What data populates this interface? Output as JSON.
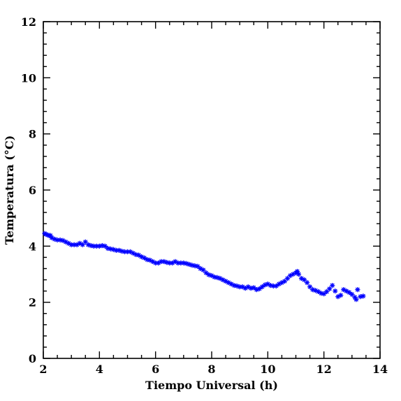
{
  "chart_data": {
    "type": "scatter",
    "xlabel": "Tiempo Universal (h)",
    "ylabel": "Temperatura (°C)",
    "xlim": [
      2,
      14
    ],
    "ylim": [
      0,
      12
    ],
    "x_ticks": [
      2,
      4,
      6,
      8,
      10,
      12,
      14
    ],
    "y_ticks": [
      0,
      2,
      4,
      6,
      8,
      10,
      12
    ],
    "x_tick_labels": [
      "2",
      "4",
      "6",
      "8",
      "10",
      "12",
      "14"
    ],
    "y_tick_labels": [
      "0",
      "2",
      "4",
      "6",
      "8",
      "10",
      "12"
    ],
    "marker": "asterisk",
    "grid": false,
    "color": "#0000ff",
    "series": [
      {
        "x": [
          2.05,
          2.1,
          2.15,
          2.2,
          2.25,
          2.3,
          2.4,
          2.5,
          2.6,
          2.7,
          2.8,
          2.9,
          3.0,
          3.1,
          3.2,
          3.3,
          3.4,
          3.5,
          3.6,
          3.7,
          3.8,
          3.9,
          4.0,
          4.1,
          4.2,
          4.3,
          4.4,
          4.5,
          4.6,
          4.7,
          4.8,
          4.9,
          5.0,
          5.1,
          5.2,
          5.3,
          5.4,
          5.5,
          5.6,
          5.7,
          5.8,
          5.9,
          6.0,
          6.1,
          6.2,
          6.3,
          6.4,
          6.5,
          6.6,
          6.7,
          6.8,
          6.9,
          7.0,
          7.1,
          7.2,
          7.3,
          7.4,
          7.5,
          7.6,
          7.7,
          7.8,
          7.9,
          8.0,
          8.1,
          8.2,
          8.3,
          8.4,
          8.5,
          8.6,
          8.7,
          8.8,
          8.9,
          9.0,
          9.1,
          9.2,
          9.3,
          9.4,
          9.5,
          9.6,
          9.7,
          9.8,
          9.9,
          10.0,
          10.1,
          10.2,
          10.3,
          10.4,
          10.5,
          10.6,
          10.7,
          10.8,
          10.9,
          11.0,
          11.05,
          11.1,
          11.2,
          11.3,
          11.4,
          11.5,
          11.6,
          11.7,
          11.8,
          11.9,
          12.0,
          12.1,
          12.2,
          12.3,
          12.4,
          12.5,
          12.6,
          12.7,
          12.8,
          12.9,
          13.0,
          13.1,
          13.15,
          13.2,
          13.3,
          13.4
        ],
        "y": [
          4.45,
          4.42,
          4.4,
          4.38,
          4.38,
          4.3,
          4.25,
          4.22,
          4.22,
          4.2,
          4.15,
          4.1,
          4.05,
          4.05,
          4.05,
          4.1,
          4.05,
          4.15,
          4.05,
          4.02,
          4.0,
          4.0,
          4.0,
          4.02,
          4.0,
          3.92,
          3.9,
          3.88,
          3.85,
          3.85,
          3.82,
          3.8,
          3.8,
          3.8,
          3.75,
          3.7,
          3.68,
          3.62,
          3.58,
          3.52,
          3.5,
          3.45,
          3.4,
          3.4,
          3.45,
          3.45,
          3.42,
          3.4,
          3.4,
          3.45,
          3.4,
          3.4,
          3.4,
          3.38,
          3.35,
          3.32,
          3.3,
          3.28,
          3.2,
          3.15,
          3.05,
          2.98,
          2.95,
          2.9,
          2.88,
          2.85,
          2.8,
          2.75,
          2.7,
          2.65,
          2.6,
          2.58,
          2.55,
          2.55,
          2.5,
          2.55,
          2.5,
          2.52,
          2.45,
          2.48,
          2.55,
          2.62,
          2.65,
          2.6,
          2.58,
          2.58,
          2.65,
          2.7,
          2.75,
          2.85,
          2.95,
          3.0,
          3.05,
          3.1,
          3.0,
          2.85,
          2.8,
          2.7,
          2.55,
          2.45,
          2.42,
          2.38,
          2.32,
          2.3,
          2.38,
          2.48,
          2.6,
          2.4,
          2.2,
          2.25,
          2.45,
          2.4,
          2.35,
          2.28,
          2.18,
          2.1,
          2.45,
          2.2,
          2.22
        ]
      }
    ]
  }
}
